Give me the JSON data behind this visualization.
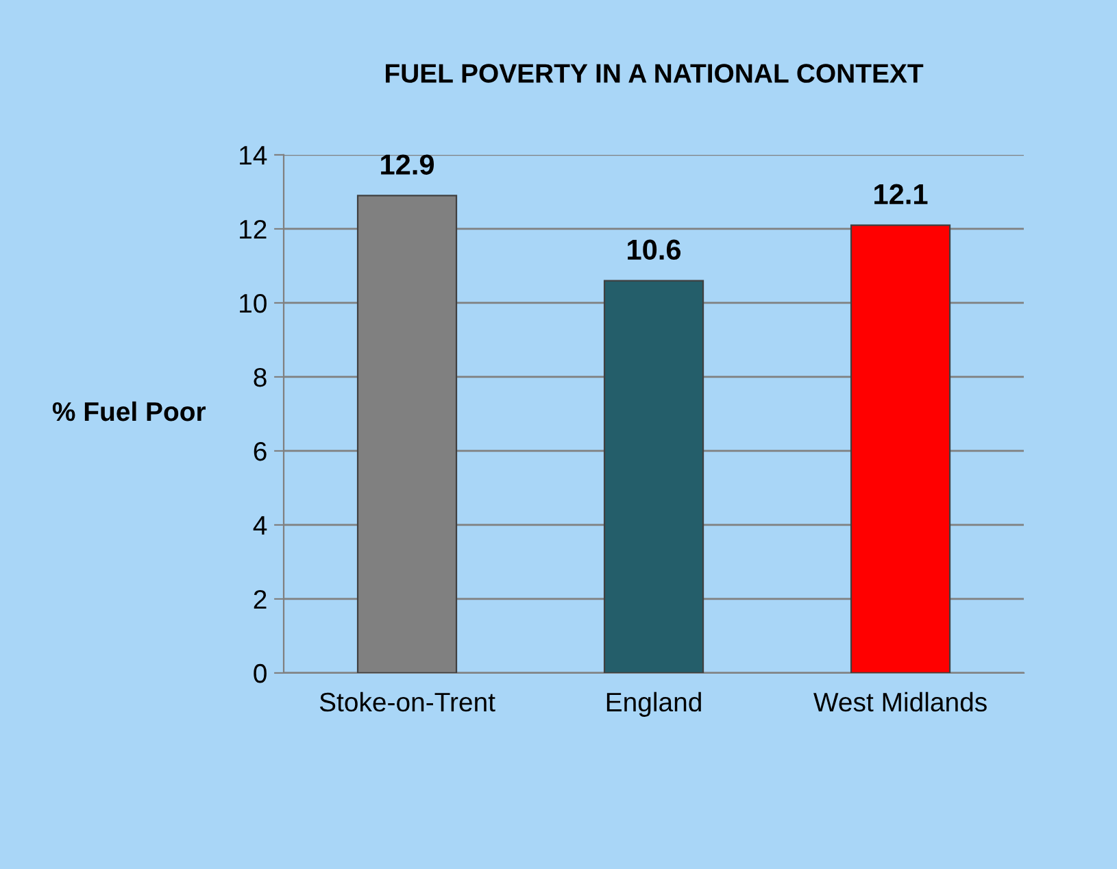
{
  "chart_data": {
    "type": "bar",
    "title": "FUEL POVERTY IN A NATIONAL CONTEXT",
    "ylabel": "% Fuel Poor",
    "categories": [
      "Stoke-on-Trent",
      "England",
      "West Midlands"
    ],
    "values": [
      12.9,
      10.6,
      12.1
    ],
    "colors": [
      "#808080",
      "#245e6a",
      "#ff0000"
    ],
    "ylim": [
      0,
      14
    ],
    "yticks": [
      0,
      2,
      4,
      6,
      8,
      10,
      12,
      14
    ],
    "grid": "y",
    "data_labels": true
  }
}
